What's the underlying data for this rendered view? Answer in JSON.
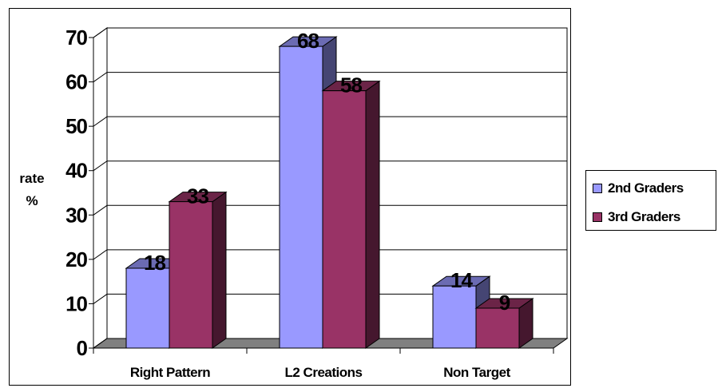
{
  "chart_data": {
    "type": "bar",
    "categories": [
      "Right Pattern",
      "L2 Creations",
      "Non Target"
    ],
    "series": [
      {
        "name": "2nd Graders",
        "values": [
          18,
          68,
          14
        ],
        "color": "#9999ff"
      },
      {
        "name": "3rd Graders",
        "values": [
          33,
          58,
          9
        ],
        "color": "#993366"
      }
    ],
    "ylabel_lines": [
      "rate",
      "%"
    ],
    "ylim": [
      0,
      70
    ],
    "yticks": [
      0,
      10,
      20,
      30,
      40,
      50,
      60,
      70
    ],
    "grid": true,
    "legend_position": "right",
    "style": "3d-clustered-column"
  }
}
